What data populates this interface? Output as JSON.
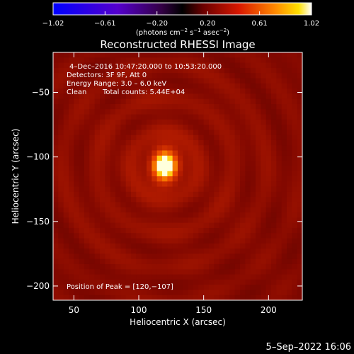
{
  "chart_data": {
    "type": "heatmap",
    "title": "Reconstructed RHESSI Image",
    "xlabel": "Heliocentric X (arcsec)",
    "ylabel": "Heliocentric Y (arcsec)",
    "xlim": [
      34,
      226
    ],
    "ylim": [
      -211,
      -19
    ],
    "x_ticks": [
      50,
      100,
      150,
      200
    ],
    "y_ticks": [
      -50,
      -100,
      -150,
      -200
    ],
    "x_tick_labels": [
      "50",
      "100",
      "150",
      "200"
    ],
    "y_tick_labels": [
      "−50",
      "−100",
      "−150",
      "−200"
    ],
    "colorbar": {
      "min": -1.02,
      "max": 1.02,
      "ticks": [
        -1.02,
        -0.61,
        -0.2,
        0.2,
        0.61,
        1.02
      ],
      "tick_labels": [
        "−1.02",
        "−0.61",
        "−0.20",
        "0.20",
        "0.61",
        "1.02"
      ],
      "units_parts": [
        "(photons cm",
        "−2",
        " s",
        "−1",
        " asec",
        "−2",
        ")"
      ]
    },
    "annotations": {
      "time_range": "4–Dec–2016 10:47:20.000 to 10:53:20.000",
      "detectors": "Detectors: 3F 9F, Att 0",
      "energy": "Energy Range: 3.0 – 6.0 keV",
      "algorithm": "Clean",
      "total_counts": "Total counts: 5.44E+04",
      "peak": "Position of Peak = [120,−107]"
    },
    "source": {
      "peak_x": 120,
      "peak_y": -107,
      "peak_value": 1.0
    },
    "grid": false
  },
  "footer": {
    "date": "5–Sep–2022 16:06"
  }
}
